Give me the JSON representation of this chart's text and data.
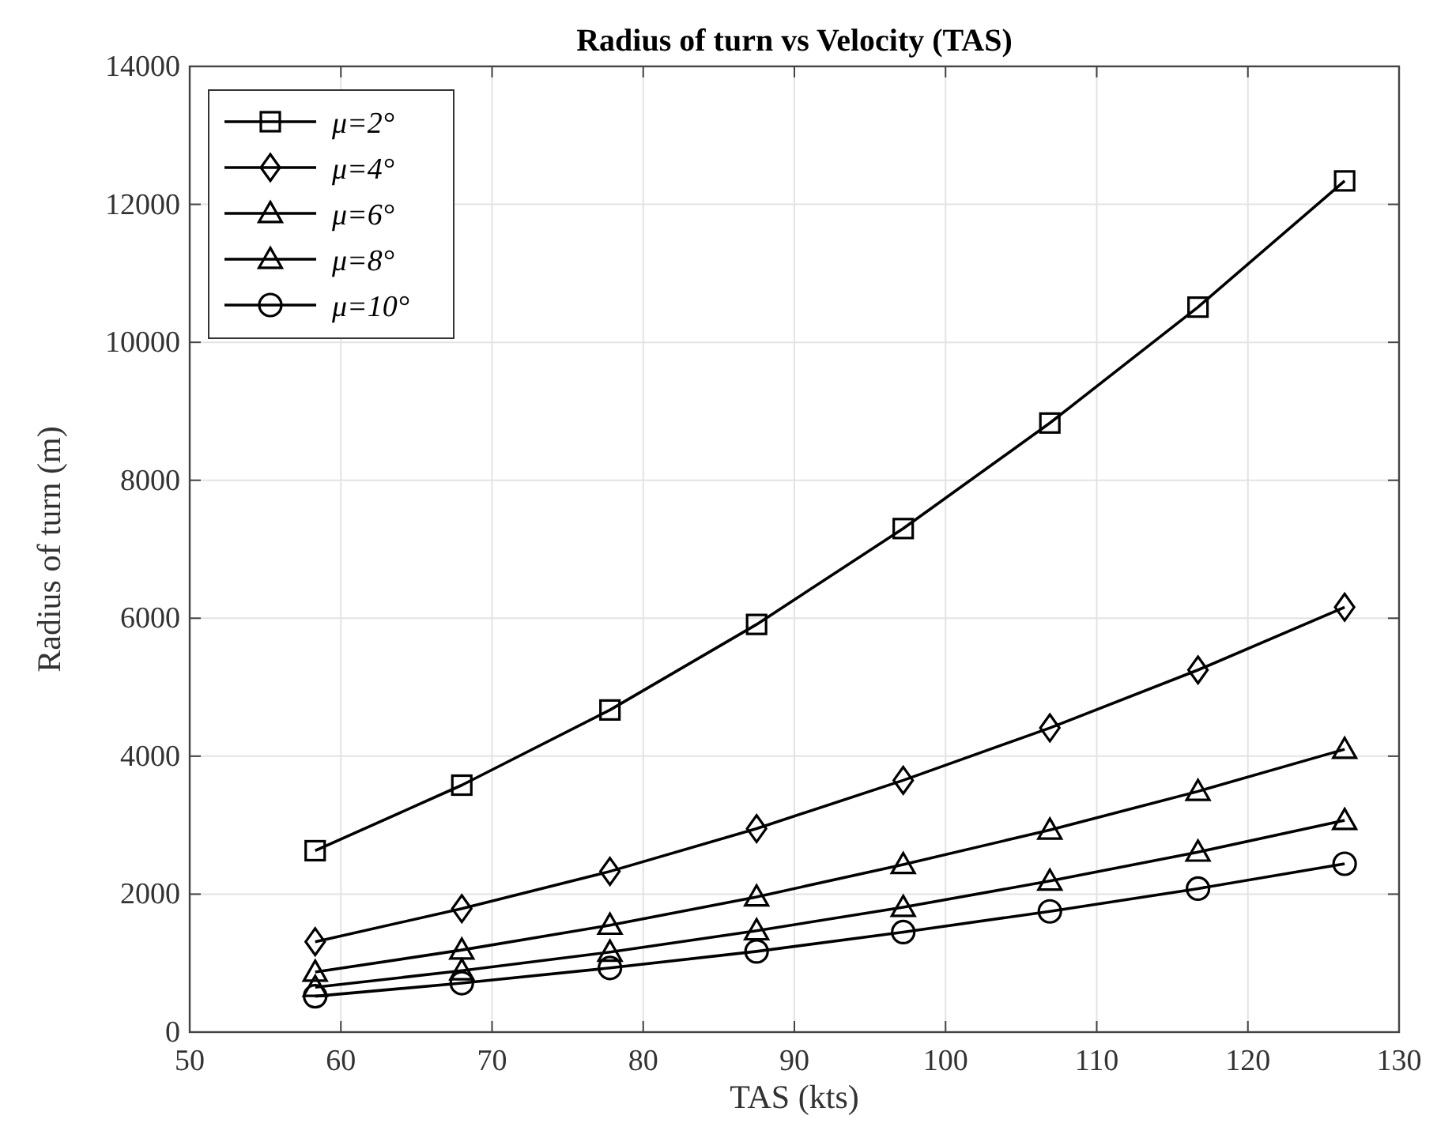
{
  "chart_data": {
    "type": "line",
    "title": "Radius of turn vs Velocity (TAS)",
    "xlabel": "TAS (kts)",
    "ylabel": "Radius of turn (m)",
    "x": [
      58.3,
      68.0,
      77.8,
      87.5,
      97.2,
      106.9,
      116.7,
      126.4
    ],
    "xlim": [
      50,
      130
    ],
    "xticks": [
      50,
      60,
      70,
      80,
      90,
      100,
      110,
      120,
      130
    ],
    "ylim": [
      0,
      14000
    ],
    "yticks": [
      0,
      2000,
      4000,
      6000,
      8000,
      10000,
      12000,
      14000
    ],
    "grid": true,
    "legend": "top left",
    "line_style": "solid",
    "series": [
      {
        "name": "μ=2°",
        "color": "#000000",
        "marker": "square",
        "values": [
          2630,
          3580,
          4670,
          5910,
          7300,
          8830,
          10510,
          12340
        ]
      },
      {
        "name": "μ=4°",
        "color": "#000000",
        "marker": "diamond",
        "values": [
          1310,
          1790,
          2330,
          2950,
          3650,
          4410,
          5250,
          6160
        ]
      },
      {
        "name": "μ=6°",
        "color": "#000000",
        "marker": "triangle",
        "values": [
          870,
          1190,
          1550,
          1960,
          2430,
          2930,
          3490,
          4100
        ]
      },
      {
        "name": "μ=8°",
        "color": "#000000",
        "marker": "triangle",
        "values": [
          650,
          890,
          1160,
          1470,
          1810,
          2190,
          2610,
          3070
        ]
      },
      {
        "name": "μ=10°",
        "color": "#000000",
        "marker": "circle",
        "values": [
          520,
          710,
          930,
          1170,
          1450,
          1750,
          2080,
          2440
        ]
      }
    ]
  }
}
